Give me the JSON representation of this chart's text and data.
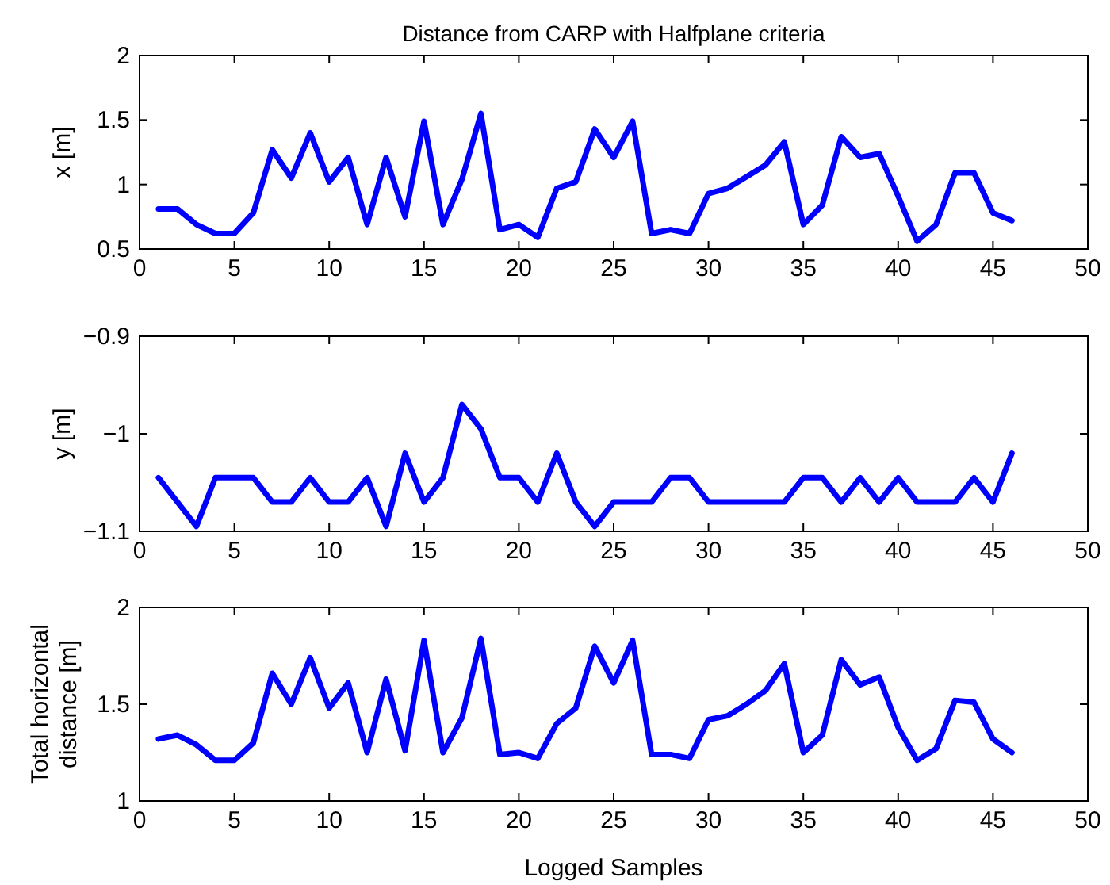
{
  "chart_data": [
    {
      "type": "line",
      "title": "Distance from CARP with Halfplane criteria",
      "ylabel": "x [m]",
      "x": [
        1,
        2,
        3,
        4,
        5,
        6,
        7,
        8,
        9,
        10,
        11,
        12,
        13,
        14,
        15,
        16,
        17,
        18,
        19,
        20,
        21,
        22,
        23,
        24,
        25,
        26,
        27,
        28,
        29,
        30,
        31,
        32,
        33,
        34,
        35,
        36,
        37,
        38,
        39,
        40,
        41,
        42,
        43,
        44,
        45,
        46
      ],
      "series": [
        {
          "color": "#0000ff",
          "values": [
            0.81,
            0.81,
            0.69,
            0.62,
            0.62,
            0.78,
            1.27,
            1.05,
            1.4,
            1.02,
            1.21,
            0.69,
            1.21,
            0.75,
            1.49,
            0.69,
            1.04,
            1.55,
            0.65,
            0.69,
            0.59,
            0.97,
            1.02,
            1.43,
            1.21,
            1.49,
            0.62,
            0.65,
            0.62,
            0.93,
            0.97,
            1.06,
            1.15,
            1.33,
            0.69,
            0.84,
            1.37,
            1.21,
            1.24,
            0.91,
            0.56,
            0.69,
            1.09,
            1.09,
            0.78,
            0.72
          ]
        }
      ],
      "xlim": [
        0,
        50
      ],
      "xticks": [
        0,
        5,
        10,
        15,
        20,
        25,
        30,
        35,
        40,
        45,
        50
      ],
      "ylim": [
        0.5,
        2
      ],
      "yticks": [
        0.5,
        1,
        1.5,
        2
      ],
      "grid": false,
      "line_style": "solid"
    },
    {
      "type": "line",
      "ylabel": "y [m]",
      "x": [
        1,
        2,
        3,
        4,
        5,
        6,
        7,
        8,
        9,
        10,
        11,
        12,
        13,
        14,
        15,
        16,
        17,
        18,
        19,
        20,
        21,
        22,
        23,
        24,
        25,
        26,
        27,
        28,
        29,
        30,
        31,
        32,
        33,
        34,
        35,
        36,
        37,
        38,
        39,
        40,
        41,
        42,
        43,
        44,
        45,
        46
      ],
      "series": [
        {
          "color": "#0000ff",
          "values": [
            -1.045,
            -1.07,
            -1.095,
            -1.045,
            -1.045,
            -1.045,
            -1.07,
            -1.07,
            -1.045,
            -1.07,
            -1.07,
            -1.045,
            -1.095,
            -1.02,
            -1.07,
            -1.045,
            -0.97,
            -0.995,
            -1.045,
            -1.045,
            -1.07,
            -1.02,
            -1.07,
            -1.095,
            -1.07,
            -1.07,
            -1.07,
            -1.045,
            -1.045,
            -1.07,
            -1.07,
            -1.07,
            -1.07,
            -1.07,
            -1.045,
            -1.045,
            -1.07,
            -1.045,
            -1.07,
            -1.045,
            -1.07,
            -1.07,
            -1.07,
            -1.045,
            -1.07,
            -1.02
          ]
        }
      ],
      "xlim": [
        0,
        50
      ],
      "xticks": [
        0,
        5,
        10,
        15,
        20,
        25,
        30,
        35,
        40,
        45,
        50
      ],
      "ylim": [
        -1.1,
        -0.9
      ],
      "yticks": [
        {
          "value": -1.1,
          "label": "−1.1"
        },
        {
          "value": -1,
          "label": "−1"
        },
        {
          "value": -0.9,
          "label": "−0.9"
        }
      ],
      "grid": false,
      "line_style": "solid"
    },
    {
      "type": "line",
      "xlabel": "Logged Samples",
      "ylabel": "Total horizontal\ndistance [m]",
      "x": [
        1,
        2,
        3,
        4,
        5,
        6,
        7,
        8,
        9,
        10,
        11,
        12,
        13,
        14,
        15,
        16,
        17,
        18,
        19,
        20,
        21,
        22,
        23,
        24,
        25,
        26,
        27,
        28,
        29,
        30,
        31,
        32,
        33,
        34,
        35,
        36,
        37,
        38,
        39,
        40,
        41,
        42,
        43,
        44,
        45,
        46
      ],
      "series": [
        {
          "color": "#0000ff",
          "values": [
            1.32,
            1.34,
            1.29,
            1.21,
            1.21,
            1.3,
            1.66,
            1.5,
            1.74,
            1.48,
            1.61,
            1.25,
            1.63,
            1.26,
            1.83,
            1.25,
            1.43,
            1.84,
            1.24,
            1.25,
            1.22,
            1.4,
            1.48,
            1.8,
            1.61,
            1.83,
            1.24,
            1.24,
            1.22,
            1.42,
            1.44,
            1.5,
            1.57,
            1.71,
            1.25,
            1.34,
            1.73,
            1.6,
            1.64,
            1.38,
            1.21,
            1.27,
            1.52,
            1.51,
            1.32,
            1.25
          ]
        }
      ],
      "xlim": [
        0,
        50
      ],
      "xticks": [
        0,
        5,
        10,
        15,
        20,
        25,
        30,
        35,
        40,
        45,
        50
      ],
      "ylim": [
        1,
        2
      ],
      "yticks": [
        1,
        1.5,
        2
      ],
      "grid": false,
      "line_style": "solid"
    }
  ]
}
